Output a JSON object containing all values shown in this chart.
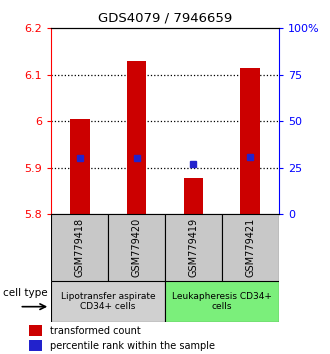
{
  "title": "GDS4079 / 7946659",
  "samples": [
    "GSM779418",
    "GSM779420",
    "GSM779419",
    "GSM779421"
  ],
  "transformed_counts": [
    6.005,
    6.13,
    5.878,
    6.115
  ],
  "percentile_ranks": [
    30,
    30,
    27,
    31
  ],
  "ylim_left": [
    5.8,
    6.2
  ],
  "ylim_right": [
    0,
    100
  ],
  "yticks_left": [
    5.8,
    5.9,
    6.0,
    6.1,
    6.2
  ],
  "ytick_labels_left": [
    "5.8",
    "5.9",
    "6",
    "6.1",
    "6.2"
  ],
  "yticks_right": [
    0,
    25,
    50,
    75,
    100
  ],
  "ytick_labels_right": [
    "0",
    "25",
    "50",
    "75",
    "100%"
  ],
  "bar_color": "#cc0000",
  "dot_color": "#2222cc",
  "groups": [
    {
      "label": "Lipotransfer aspirate\nCD34+ cells",
      "samples": [
        0,
        1
      ],
      "color": "#d0d0d0"
    },
    {
      "label": "Leukapheresis CD34+\ncells",
      "samples": [
        2,
        3
      ],
      "color": "#7bef7b"
    }
  ],
  "sample_box_color": "#c8c8c8",
  "cell_type_label": "cell type",
  "legend_bar_label": "transformed count",
  "legend_dot_label": "percentile rank within the sample",
  "bar_bottom": 5.8,
  "bar_width": 0.35
}
